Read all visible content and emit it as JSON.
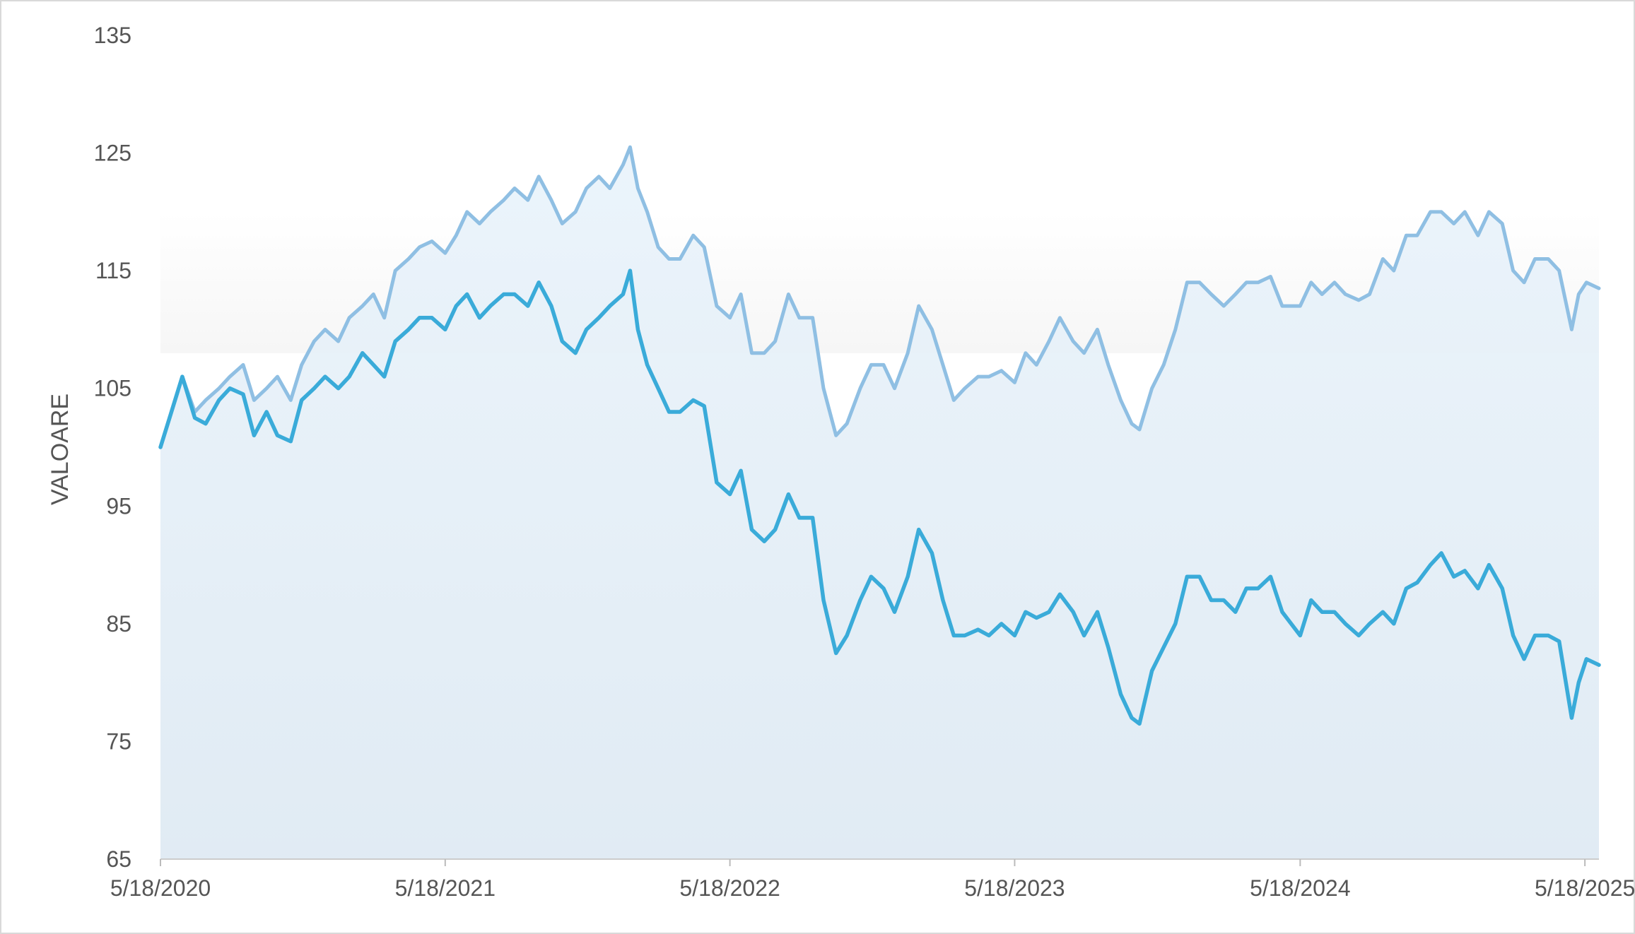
{
  "chart_data": {
    "type": "line",
    "ylabel": "VALOARE",
    "xlabel": "",
    "ylim": [
      65,
      135
    ],
    "y_ticks": [
      "65",
      "75",
      "85",
      "95",
      "105",
      "115",
      "125",
      "135"
    ],
    "x_range": [
      "2020-05-18",
      "2025-06-05"
    ],
    "x_ticks": [
      {
        "date": "2020-05-18",
        "label": "5/18/2020"
      },
      {
        "date": "2021-05-18",
        "label": "5/18/2021"
      },
      {
        "date": "2022-05-18",
        "label": "5/18/2022"
      },
      {
        "date": "2023-05-18",
        "label": "5/18/2023"
      },
      {
        "date": "2024-05-18",
        "label": "5/18/2024"
      },
      {
        "date": "2025-05-18",
        "label": "5/18/2025"
      }
    ],
    "grid": false,
    "legend": "none",
    "series": [
      {
        "color": "#8fbfe3",
        "points": [
          [
            "2020-05-18",
            100.0
          ],
          [
            "2020-06-01",
            103.0
          ],
          [
            "2020-06-15",
            106.0
          ],
          [
            "2020-07-01",
            103.0
          ],
          [
            "2020-07-15",
            104.0
          ],
          [
            "2020-08-01",
            105.0
          ],
          [
            "2020-08-15",
            106.0
          ],
          [
            "2020-09-01",
            107.0
          ],
          [
            "2020-09-15",
            104.0
          ],
          [
            "2020-10-01",
            105.0
          ],
          [
            "2020-10-15",
            106.0
          ],
          [
            "2020-11-01",
            104.0
          ],
          [
            "2020-11-15",
            107.0
          ],
          [
            "2020-12-01",
            109.0
          ],
          [
            "2020-12-15",
            110.0
          ],
          [
            "2021-01-01",
            109.0
          ],
          [
            "2021-01-15",
            111.0
          ],
          [
            "2021-02-01",
            112.0
          ],
          [
            "2021-02-15",
            113.0
          ],
          [
            "2021-03-01",
            111.0
          ],
          [
            "2021-03-15",
            115.0
          ],
          [
            "2021-04-01",
            116.0
          ],
          [
            "2021-04-15",
            117.0
          ],
          [
            "2021-05-01",
            117.5
          ],
          [
            "2021-05-18",
            116.5
          ],
          [
            "2021-06-01",
            118.0
          ],
          [
            "2021-06-15",
            120.0
          ],
          [
            "2021-07-01",
            119.0
          ],
          [
            "2021-07-15",
            120.0
          ],
          [
            "2021-08-01",
            121.0
          ],
          [
            "2021-08-15",
            122.0
          ],
          [
            "2021-09-01",
            121.0
          ],
          [
            "2021-09-15",
            123.0
          ],
          [
            "2021-10-01",
            121.0
          ],
          [
            "2021-10-15",
            119.0
          ],
          [
            "2021-11-01",
            120.0
          ],
          [
            "2021-11-15",
            122.0
          ],
          [
            "2021-12-01",
            123.0
          ],
          [
            "2021-12-15",
            122.0
          ],
          [
            "2022-01-01",
            124.0
          ],
          [
            "2022-01-10",
            125.5
          ],
          [
            "2022-01-20",
            122.0
          ],
          [
            "2022-02-01",
            120.0
          ],
          [
            "2022-02-15",
            117.0
          ],
          [
            "2022-03-01",
            116.0
          ],
          [
            "2022-03-15",
            116.0
          ],
          [
            "2022-04-01",
            118.0
          ],
          [
            "2022-04-15",
            117.0
          ],
          [
            "2022-05-01",
            112.0
          ],
          [
            "2022-05-18",
            111.0
          ],
          [
            "2022-06-01",
            113.0
          ],
          [
            "2022-06-15",
            108.0
          ],
          [
            "2022-07-01",
            108.0
          ],
          [
            "2022-07-15",
            109.0
          ],
          [
            "2022-08-01",
            113.0
          ],
          [
            "2022-08-15",
            111.0
          ],
          [
            "2022-09-01",
            111.0
          ],
          [
            "2022-09-15",
            105.0
          ],
          [
            "2022-10-01",
            101.0
          ],
          [
            "2022-10-15",
            102.0
          ],
          [
            "2022-11-01",
            105.0
          ],
          [
            "2022-11-15",
            107.0
          ],
          [
            "2022-12-01",
            107.0
          ],
          [
            "2022-12-15",
            105.0
          ],
          [
            "2023-01-01",
            108.0
          ],
          [
            "2023-01-15",
            112.0
          ],
          [
            "2023-02-01",
            110.0
          ],
          [
            "2023-02-15",
            107.0
          ],
          [
            "2023-03-01",
            104.0
          ],
          [
            "2023-03-15",
            105.0
          ],
          [
            "2023-04-01",
            106.0
          ],
          [
            "2023-04-15",
            106.0
          ],
          [
            "2023-05-01",
            106.5
          ],
          [
            "2023-05-18",
            105.5
          ],
          [
            "2023-06-01",
            108.0
          ],
          [
            "2023-06-15",
            107.0
          ],
          [
            "2023-07-01",
            109.0
          ],
          [
            "2023-07-15",
            111.0
          ],
          [
            "2023-08-01",
            109.0
          ],
          [
            "2023-08-15",
            108.0
          ],
          [
            "2023-09-01",
            110.0
          ],
          [
            "2023-09-15",
            107.0
          ],
          [
            "2023-10-01",
            104.0
          ],
          [
            "2023-10-15",
            102.0
          ],
          [
            "2023-10-25",
            101.5
          ],
          [
            "2023-11-10",
            105.0
          ],
          [
            "2023-11-25",
            107.0
          ],
          [
            "2023-12-10",
            110.0
          ],
          [
            "2023-12-25",
            114.0
          ],
          [
            "2024-01-10",
            114.0
          ],
          [
            "2024-01-25",
            113.0
          ],
          [
            "2024-02-10",
            112.0
          ],
          [
            "2024-02-25",
            113.0
          ],
          [
            "2024-03-10",
            114.0
          ],
          [
            "2024-03-25",
            114.0
          ],
          [
            "2024-04-10",
            114.5
          ],
          [
            "2024-04-25",
            112.0
          ],
          [
            "2024-05-18",
            112.0
          ],
          [
            "2024-06-01",
            114.0
          ],
          [
            "2024-06-15",
            113.0
          ],
          [
            "2024-07-01",
            114.0
          ],
          [
            "2024-07-15",
            113.0
          ],
          [
            "2024-08-01",
            112.5
          ],
          [
            "2024-08-15",
            113.0
          ],
          [
            "2024-09-01",
            116.0
          ],
          [
            "2024-09-15",
            115.0
          ],
          [
            "2024-10-01",
            118.0
          ],
          [
            "2024-10-15",
            118.0
          ],
          [
            "2024-11-01",
            120.0
          ],
          [
            "2024-11-15",
            120.0
          ],
          [
            "2024-12-01",
            119.0
          ],
          [
            "2024-12-15",
            120.0
          ],
          [
            "2025-01-01",
            118.0
          ],
          [
            "2025-01-15",
            120.0
          ],
          [
            "2025-02-01",
            119.0
          ],
          [
            "2025-02-15",
            115.0
          ],
          [
            "2025-03-01",
            114.0
          ],
          [
            "2025-03-15",
            116.0
          ],
          [
            "2025-04-01",
            116.0
          ],
          [
            "2025-04-15",
            115.0
          ],
          [
            "2025-05-01",
            110.0
          ],
          [
            "2025-05-10",
            113.0
          ],
          [
            "2025-05-20",
            114.0
          ],
          [
            "2025-06-05",
            113.5
          ]
        ]
      },
      {
        "color": "#3aabd9",
        "points": [
          [
            "2020-05-18",
            100.0
          ],
          [
            "2020-06-01",
            103.0
          ],
          [
            "2020-06-15",
            106.0
          ],
          [
            "2020-07-01",
            102.5
          ],
          [
            "2020-07-15",
            102.0
          ],
          [
            "2020-08-01",
            104.0
          ],
          [
            "2020-08-15",
            105.0
          ],
          [
            "2020-09-01",
            104.5
          ],
          [
            "2020-09-15",
            101.0
          ],
          [
            "2020-10-01",
            103.0
          ],
          [
            "2020-10-15",
            101.0
          ],
          [
            "2020-11-01",
            100.5
          ],
          [
            "2020-11-15",
            104.0
          ],
          [
            "2020-12-01",
            105.0
          ],
          [
            "2020-12-15",
            106.0
          ],
          [
            "2021-01-01",
            105.0
          ],
          [
            "2021-01-15",
            106.0
          ],
          [
            "2021-02-01",
            108.0
          ],
          [
            "2021-02-15",
            107.0
          ],
          [
            "2021-03-01",
            106.0
          ],
          [
            "2021-03-15",
            109.0
          ],
          [
            "2021-04-01",
            110.0
          ],
          [
            "2021-04-15",
            111.0
          ],
          [
            "2021-05-01",
            111.0
          ],
          [
            "2021-05-18",
            110.0
          ],
          [
            "2021-06-01",
            112.0
          ],
          [
            "2021-06-15",
            113.0
          ],
          [
            "2021-07-01",
            111.0
          ],
          [
            "2021-07-15",
            112.0
          ],
          [
            "2021-08-01",
            113.0
          ],
          [
            "2021-08-15",
            113.0
          ],
          [
            "2021-09-01",
            112.0
          ],
          [
            "2021-09-15",
            114.0
          ],
          [
            "2021-10-01",
            112.0
          ],
          [
            "2021-10-15",
            109.0
          ],
          [
            "2021-11-01",
            108.0
          ],
          [
            "2021-11-15",
            110.0
          ],
          [
            "2021-12-01",
            111.0
          ],
          [
            "2021-12-15",
            112.0
          ],
          [
            "2022-01-01",
            113.0
          ],
          [
            "2022-01-10",
            115.0
          ],
          [
            "2022-01-20",
            110.0
          ],
          [
            "2022-02-01",
            107.0
          ],
          [
            "2022-02-15",
            105.0
          ],
          [
            "2022-03-01",
            103.0
          ],
          [
            "2022-03-15",
            103.0
          ],
          [
            "2022-04-01",
            104.0
          ],
          [
            "2022-04-15",
            103.5
          ],
          [
            "2022-05-01",
            97.0
          ],
          [
            "2022-05-18",
            96.0
          ],
          [
            "2022-06-01",
            98.0
          ],
          [
            "2022-06-15",
            93.0
          ],
          [
            "2022-07-01",
            92.0
          ],
          [
            "2022-07-15",
            93.0
          ],
          [
            "2022-08-01",
            96.0
          ],
          [
            "2022-08-15",
            94.0
          ],
          [
            "2022-09-01",
            94.0
          ],
          [
            "2022-09-15",
            87.0
          ],
          [
            "2022-10-01",
            82.5
          ],
          [
            "2022-10-15",
            84.0
          ],
          [
            "2022-11-01",
            87.0
          ],
          [
            "2022-11-15",
            89.0
          ],
          [
            "2022-12-01",
            88.0
          ],
          [
            "2022-12-15",
            86.0
          ],
          [
            "2023-01-01",
            89.0
          ],
          [
            "2023-01-15",
            93.0
          ],
          [
            "2023-02-01",
            91.0
          ],
          [
            "2023-02-15",
            87.0
          ],
          [
            "2023-03-01",
            84.0
          ],
          [
            "2023-03-15",
            84.0
          ],
          [
            "2023-04-01",
            84.5
          ],
          [
            "2023-04-15",
            84.0
          ],
          [
            "2023-05-01",
            85.0
          ],
          [
            "2023-05-18",
            84.0
          ],
          [
            "2023-06-01",
            86.0
          ],
          [
            "2023-06-15",
            85.5
          ],
          [
            "2023-07-01",
            86.0
          ],
          [
            "2023-07-15",
            87.5
          ],
          [
            "2023-08-01",
            86.0
          ],
          [
            "2023-08-15",
            84.0
          ],
          [
            "2023-09-01",
            86.0
          ],
          [
            "2023-09-15",
            83.0
          ],
          [
            "2023-10-01",
            79.0
          ],
          [
            "2023-10-15",
            77.0
          ],
          [
            "2023-10-25",
            76.5
          ],
          [
            "2023-11-10",
            81.0
          ],
          [
            "2023-11-25",
            83.0
          ],
          [
            "2023-12-10",
            85.0
          ],
          [
            "2023-12-25",
            89.0
          ],
          [
            "2024-01-10",
            89.0
          ],
          [
            "2024-01-25",
            87.0
          ],
          [
            "2024-02-10",
            87.0
          ],
          [
            "2024-02-25",
            86.0
          ],
          [
            "2024-03-10",
            88.0
          ],
          [
            "2024-03-25",
            88.0
          ],
          [
            "2024-04-10",
            89.0
          ],
          [
            "2024-04-25",
            86.0
          ],
          [
            "2024-05-18",
            84.0
          ],
          [
            "2024-06-01",
            87.0
          ],
          [
            "2024-06-15",
            86.0
          ],
          [
            "2024-07-01",
            86.0
          ],
          [
            "2024-07-15",
            85.0
          ],
          [
            "2024-08-01",
            84.0
          ],
          [
            "2024-08-15",
            85.0
          ],
          [
            "2024-09-01",
            86.0
          ],
          [
            "2024-09-15",
            85.0
          ],
          [
            "2024-10-01",
            88.0
          ],
          [
            "2024-10-15",
            88.5
          ],
          [
            "2024-11-01",
            90.0
          ],
          [
            "2024-11-15",
            91.0
          ],
          [
            "2024-12-01",
            89.0
          ],
          [
            "2024-12-15",
            89.5
          ],
          [
            "2025-01-01",
            88.0
          ],
          [
            "2025-01-15",
            90.0
          ],
          [
            "2025-02-01",
            88.0
          ],
          [
            "2025-02-15",
            84.0
          ],
          [
            "2025-03-01",
            82.0
          ],
          [
            "2025-03-15",
            84.0
          ],
          [
            "2025-04-01",
            84.0
          ],
          [
            "2025-04-15",
            83.5
          ],
          [
            "2025-05-01",
            77.0
          ],
          [
            "2025-05-10",
            80.0
          ],
          [
            "2025-05-20",
            82.0
          ],
          [
            "2025-06-05",
            81.5
          ]
        ]
      }
    ]
  }
}
